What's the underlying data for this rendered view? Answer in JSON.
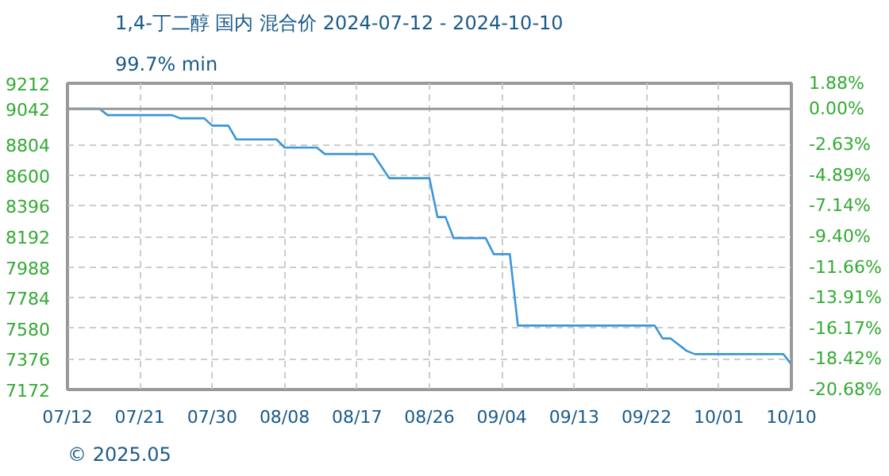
{
  "chart_data": {
    "type": "line",
    "title": "1,4-丁二醇 国内 混合价 2024-07-12 - 2024-10-10",
    "subtitle": "99.7% min",
    "annotations": [
      "© 2025.05"
    ],
    "x": [
      "2024-07-12",
      "2024-07-16",
      "2024-07-17",
      "2024-07-25",
      "2024-07-26",
      "2024-07-29",
      "2024-07-30",
      "2024-08-01",
      "2024-08-02",
      "2024-08-07",
      "2024-08-08",
      "2024-08-12",
      "2024-08-13",
      "2024-08-19",
      "2024-08-21",
      "2024-08-26",
      "2024-08-27",
      "2024-08-28",
      "2024-08-29",
      "2024-09-02",
      "2024-09-03",
      "2024-09-05",
      "2024-09-06",
      "2024-09-23",
      "2024-09-24",
      "2024-09-25",
      "2024-09-27",
      "2024-09-28",
      "2024-10-09",
      "2024-10-10"
    ],
    "series": [
      {
        "color": "#3a96d8",
        "values": [
          9042,
          9042,
          9000,
          9000,
          8979,
          8979,
          8930,
          8930,
          8838,
          8838,
          8784,
          8784,
          8741,
          8741,
          8580,
          8580,
          8321,
          8321,
          8181,
          8181,
          8074,
          8074,
          7598,
          7598,
          7512,
          7512,
          7429,
          7408,
          7408,
          7340
        ]
      }
    ],
    "xlim": [
      "2024-07-12",
      "2024-10-10"
    ],
    "xticks": [
      {
        "value": "2024-07-12",
        "label": "07/12"
      },
      {
        "value": "2024-07-21",
        "label": "07/21"
      },
      {
        "value": "2024-07-30",
        "label": "07/30"
      },
      {
        "value": "2024-08-08",
        "label": "08/08"
      },
      {
        "value": "2024-08-17",
        "label": "08/17"
      },
      {
        "value": "2024-08-26",
        "label": "08/26"
      },
      {
        "value": "2024-09-04",
        "label": "09/04"
      },
      {
        "value": "2024-09-13",
        "label": "09/13"
      },
      {
        "value": "2024-09-22",
        "label": "09/22"
      },
      {
        "value": "2024-10-01",
        "label": "10/01"
      },
      {
        "value": "2024-10-10",
        "label": "10/10"
      }
    ],
    "ylim": [
      7172,
      9212
    ],
    "yticks": [
      7172,
      7376,
      7580,
      7784,
      7988,
      8192,
      8396,
      8600,
      8804,
      9042,
      9212
    ],
    "y2lim": [
      -20.68,
      1.88
    ],
    "y2ticks": [
      {
        "value": -20.68,
        "label": "-20.68%"
      },
      {
        "value": -18.42,
        "label": "-18.42%"
      },
      {
        "value": -16.17,
        "label": "-16.17%"
      },
      {
        "value": -13.91,
        "label": "-13.91%"
      },
      {
        "value": -11.66,
        "label": "-11.66%"
      },
      {
        "value": -9.4,
        "label": "-9.40%"
      },
      {
        "value": -7.14,
        "label": "-7.14%"
      },
      {
        "value": -4.89,
        "label": "-4.89%"
      },
      {
        "value": -2.63,
        "label": "-2.63%"
      },
      {
        "value": 0,
        "label": "0.00%"
      },
      {
        "value": 1.88,
        "label": "1.88%"
      }
    ],
    "ref_lines": [
      {
        "axis": "y",
        "value": 9042,
        "color": "#999999",
        "line_style": "solid"
      }
    ],
    "grid": true,
    "marker": "none",
    "line_style": "solid"
  }
}
